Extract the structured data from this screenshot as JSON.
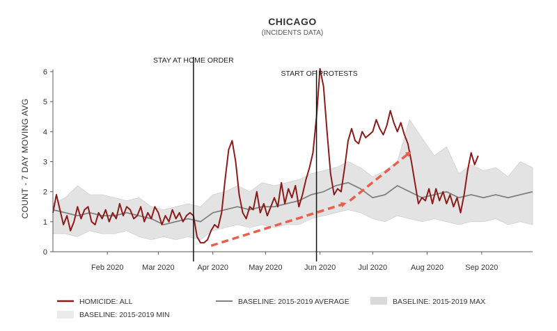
{
  "chart_data": {
    "type": "line",
    "title": "CHICAGO",
    "subtitle": "(INCIDENTS DATA)",
    "ylabel": "COUNT - 7 DAY MOVING AVG",
    "ylim": [
      0,
      6
    ],
    "y_ticks": [
      0,
      1,
      2,
      3,
      4,
      5,
      6
    ],
    "xlim": [
      "2020-01-01",
      "2020-09-30"
    ],
    "x_ticks": [
      {
        "date": "2020-02-01",
        "label": "Feb 2020"
      },
      {
        "date": "2020-03-01",
        "label": "Mar 2020"
      },
      {
        "date": "2020-04-01",
        "label": "Apr 2020"
      },
      {
        "date": "2020-05-01",
        "label": "May 2020"
      },
      {
        "date": "2020-06-01",
        "label": "Jun 2020"
      },
      {
        "date": "2020-07-01",
        "label": "Jul 2020"
      },
      {
        "date": "2020-08-01",
        "label": "Aug 2020"
      },
      {
        "date": "2020-09-01",
        "label": "Sep 2020"
      }
    ],
    "events": [
      {
        "date": "2020-03-21",
        "label": "STAY AT HOME ORDER"
      },
      {
        "date": "2020-05-30",
        "label": "START OF PROTESTS"
      }
    ],
    "grid": false,
    "legend_position": "bottom",
    "colors": {
      "homicide": "#8b1a1a",
      "average": "#808080",
      "band": "#d9d9d9",
      "arrow": "#e8604c",
      "event_line": "#111111"
    },
    "series": [
      {
        "name": "HOMICIDE: ALL",
        "points": [
          [
            "2020-01-01",
            1.3
          ],
          [
            "2020-01-03",
            1.9
          ],
          [
            "2020-01-05",
            1.4
          ],
          [
            "2020-01-07",
            0.9
          ],
          [
            "2020-01-09",
            1.2
          ],
          [
            "2020-01-11",
            0.7
          ],
          [
            "2020-01-13",
            1.0
          ],
          [
            "2020-01-15",
            1.5
          ],
          [
            "2020-01-17",
            1.1
          ],
          [
            "2020-01-19",
            1.4
          ],
          [
            "2020-01-21",
            1.5
          ],
          [
            "2020-01-23",
            1.0
          ],
          [
            "2020-01-25",
            0.9
          ],
          [
            "2020-01-27",
            1.3
          ],
          [
            "2020-01-29",
            1.1
          ],
          [
            "2020-01-31",
            1.4
          ],
          [
            "2020-02-02",
            1.0
          ],
          [
            "2020-02-04",
            1.3
          ],
          [
            "2020-02-06",
            1.1
          ],
          [
            "2020-02-08",
            1.6
          ],
          [
            "2020-02-10",
            1.2
          ],
          [
            "2020-02-12",
            1.5
          ],
          [
            "2020-02-14",
            1.4
          ],
          [
            "2020-02-16",
            1.1
          ],
          [
            "2020-02-18",
            1.2
          ],
          [
            "2020-02-20",
            1.5
          ],
          [
            "2020-02-22",
            1.0
          ],
          [
            "2020-02-24",
            1.3
          ],
          [
            "2020-02-26",
            1.1
          ],
          [
            "2020-02-28",
            1.5
          ],
          [
            "2020-03-01",
            1.3
          ],
          [
            "2020-03-03",
            0.9
          ],
          [
            "2020-03-05",
            1.2
          ],
          [
            "2020-03-07",
            1.0
          ],
          [
            "2020-03-09",
            1.4
          ],
          [
            "2020-03-11",
            1.1
          ],
          [
            "2020-03-13",
            1.3
          ],
          [
            "2020-03-15",
            1.0
          ],
          [
            "2020-03-17",
            1.2
          ],
          [
            "2020-03-19",
            1.3
          ],
          [
            "2020-03-21",
            1.2
          ],
          [
            "2020-03-23",
            0.5
          ],
          [
            "2020-03-25",
            0.3
          ],
          [
            "2020-03-27",
            0.3
          ],
          [
            "2020-03-29",
            0.4
          ],
          [
            "2020-03-31",
            0.7
          ],
          [
            "2020-04-02",
            0.9
          ],
          [
            "2020-04-04",
            0.8
          ],
          [
            "2020-04-06",
            1.3
          ],
          [
            "2020-04-08",
            2.4
          ],
          [
            "2020-04-10",
            3.4
          ],
          [
            "2020-04-12",
            3.7
          ],
          [
            "2020-04-14",
            3.0
          ],
          [
            "2020-04-16",
            1.9
          ],
          [
            "2020-04-18",
            1.3
          ],
          [
            "2020-04-20",
            1.1
          ],
          [
            "2020-04-22",
            1.5
          ],
          [
            "2020-04-24",
            1.4
          ],
          [
            "2020-04-26",
            2.0
          ],
          [
            "2020-04-28",
            1.3
          ],
          [
            "2020-04-30",
            1.6
          ],
          [
            "2020-05-02",
            1.2
          ],
          [
            "2020-05-04",
            1.5
          ],
          [
            "2020-05-06",
            1.8
          ],
          [
            "2020-05-08",
            1.5
          ],
          [
            "2020-05-10",
            2.3
          ],
          [
            "2020-05-12",
            1.6
          ],
          [
            "2020-05-14",
            2.1
          ],
          [
            "2020-05-16",
            1.8
          ],
          [
            "2020-05-18",
            2.2
          ],
          [
            "2020-05-20",
            1.5
          ],
          [
            "2020-05-22",
            1.9
          ],
          [
            "2020-05-24",
            2.4
          ],
          [
            "2020-05-26",
            2.8
          ],
          [
            "2020-05-28",
            3.3
          ],
          [
            "2020-05-30",
            4.5
          ],
          [
            "2020-06-01",
            6.1
          ],
          [
            "2020-06-03",
            5.5
          ],
          [
            "2020-06-05",
            4.0
          ],
          [
            "2020-06-07",
            2.6
          ],
          [
            "2020-06-09",
            1.9
          ],
          [
            "2020-06-11",
            2.1
          ],
          [
            "2020-06-13",
            2.0
          ],
          [
            "2020-06-15",
            2.8
          ],
          [
            "2020-06-17",
            3.7
          ],
          [
            "2020-06-19",
            4.1
          ],
          [
            "2020-06-21",
            3.7
          ],
          [
            "2020-06-23",
            3.6
          ],
          [
            "2020-06-25",
            4.0
          ],
          [
            "2020-06-27",
            3.8
          ],
          [
            "2020-06-29",
            3.9
          ],
          [
            "2020-07-01",
            4.0
          ],
          [
            "2020-07-03",
            4.4
          ],
          [
            "2020-07-05",
            4.1
          ],
          [
            "2020-07-07",
            3.9
          ],
          [
            "2020-07-09",
            4.2
          ],
          [
            "2020-07-11",
            4.7
          ],
          [
            "2020-07-13",
            4.3
          ],
          [
            "2020-07-15",
            4.0
          ],
          [
            "2020-07-17",
            4.3
          ],
          [
            "2020-07-19",
            3.9
          ],
          [
            "2020-07-21",
            3.6
          ],
          [
            "2020-07-23",
            3.0
          ],
          [
            "2020-07-25",
            2.3
          ],
          [
            "2020-07-27",
            1.6
          ],
          [
            "2020-07-29",
            1.8
          ],
          [
            "2020-07-31",
            1.7
          ],
          [
            "2020-08-02",
            2.1
          ],
          [
            "2020-08-04",
            1.6
          ],
          [
            "2020-08-06",
            2.1
          ],
          [
            "2020-08-08",
            1.7
          ],
          [
            "2020-08-10",
            2.0
          ],
          [
            "2020-08-12",
            1.6
          ],
          [
            "2020-08-14",
            1.9
          ],
          [
            "2020-08-16",
            1.5
          ],
          [
            "2020-08-18",
            1.8
          ],
          [
            "2020-08-20",
            1.3
          ],
          [
            "2020-08-22",
            1.9
          ],
          [
            "2020-08-24",
            2.7
          ],
          [
            "2020-08-26",
            3.3
          ],
          [
            "2020-08-28",
            2.9
          ],
          [
            "2020-08-30",
            3.2
          ]
        ]
      },
      {
        "name": "BASELINE: 2015-2019 AVERAGE",
        "points": [
          [
            "2020-01-01",
            1.4
          ],
          [
            "2020-01-08",
            1.3
          ],
          [
            "2020-01-15",
            1.2
          ],
          [
            "2020-01-22",
            1.3
          ],
          [
            "2020-01-29",
            1.2
          ],
          [
            "2020-02-05",
            1.2
          ],
          [
            "2020-02-12",
            1.3
          ],
          [
            "2020-02-19",
            1.2
          ],
          [
            "2020-02-26",
            1.1
          ],
          [
            "2020-03-04",
            0.9
          ],
          [
            "2020-03-11",
            1.0
          ],
          [
            "2020-03-18",
            1.1
          ],
          [
            "2020-03-25",
            1.0
          ],
          [
            "2020-04-01",
            1.3
          ],
          [
            "2020-04-08",
            1.4
          ],
          [
            "2020-04-15",
            1.5
          ],
          [
            "2020-04-22",
            1.4
          ],
          [
            "2020-04-29",
            1.5
          ],
          [
            "2020-05-06",
            1.5
          ],
          [
            "2020-05-13",
            1.6
          ],
          [
            "2020-05-20",
            1.7
          ],
          [
            "2020-05-27",
            1.9
          ],
          [
            "2020-06-03",
            2.0
          ],
          [
            "2020-06-10",
            2.2
          ],
          [
            "2020-06-17",
            2.3
          ],
          [
            "2020-06-24",
            2.1
          ],
          [
            "2020-07-01",
            1.8
          ],
          [
            "2020-07-08",
            1.9
          ],
          [
            "2020-07-15",
            2.2
          ],
          [
            "2020-07-22",
            2.0
          ],
          [
            "2020-07-29",
            1.8
          ],
          [
            "2020-08-05",
            1.9
          ],
          [
            "2020-08-12",
            2.0
          ],
          [
            "2020-08-19",
            1.8
          ],
          [
            "2020-08-26",
            1.9
          ],
          [
            "2020-09-02",
            1.8
          ],
          [
            "2020-09-09",
            1.9
          ],
          [
            "2020-09-16",
            1.8
          ],
          [
            "2020-09-23",
            1.9
          ],
          [
            "2020-09-30",
            2.0
          ]
        ]
      },
      {
        "name": "BASELINE: 2015-2019 MAX",
        "points": [
          [
            "2020-01-01",
            1.6
          ],
          [
            "2020-01-08",
            1.8
          ],
          [
            "2020-01-15",
            2.2
          ],
          [
            "2020-01-22",
            1.9
          ],
          [
            "2020-01-29",
            1.9
          ],
          [
            "2020-02-05",
            1.8
          ],
          [
            "2020-02-12",
            1.7
          ],
          [
            "2020-02-19",
            1.8
          ],
          [
            "2020-02-26",
            1.5
          ],
          [
            "2020-03-04",
            1.4
          ],
          [
            "2020-03-11",
            1.5
          ],
          [
            "2020-03-18",
            1.6
          ],
          [
            "2020-03-25",
            1.5
          ],
          [
            "2020-04-01",
            1.9
          ],
          [
            "2020-04-08",
            2.0
          ],
          [
            "2020-04-15",
            2.2
          ],
          [
            "2020-04-22",
            2.0
          ],
          [
            "2020-04-29",
            2.3
          ],
          [
            "2020-05-06",
            2.2
          ],
          [
            "2020-05-13",
            2.3
          ],
          [
            "2020-05-20",
            2.4
          ],
          [
            "2020-05-27",
            2.6
          ],
          [
            "2020-06-03",
            2.7
          ],
          [
            "2020-06-10",
            2.8
          ],
          [
            "2020-06-17",
            3.0
          ],
          [
            "2020-06-24",
            2.8
          ],
          [
            "2020-07-01",
            2.5
          ],
          [
            "2020-07-08",
            2.7
          ],
          [
            "2020-07-15",
            3.0
          ],
          [
            "2020-07-22",
            4.4
          ],
          [
            "2020-07-29",
            3.8
          ],
          [
            "2020-08-05",
            3.2
          ],
          [
            "2020-08-12",
            3.5
          ],
          [
            "2020-08-19",
            2.6
          ],
          [
            "2020-08-26",
            2.9
          ],
          [
            "2020-09-02",
            2.7
          ],
          [
            "2020-09-09",
            2.8
          ],
          [
            "2020-09-16",
            2.5
          ],
          [
            "2020-09-23",
            3.0
          ],
          [
            "2020-09-30",
            2.8
          ]
        ]
      },
      {
        "name": "BASELINE: 2015-2019 MIN",
        "points": [
          [
            "2020-01-01",
            0.6
          ],
          [
            "2020-01-08",
            0.6
          ],
          [
            "2020-01-15",
            0.5
          ],
          [
            "2020-01-22",
            0.7
          ],
          [
            "2020-01-29",
            0.6
          ],
          [
            "2020-02-05",
            0.6
          ],
          [
            "2020-02-12",
            0.7
          ],
          [
            "2020-02-19",
            0.5
          ],
          [
            "2020-02-26",
            0.4
          ],
          [
            "2020-03-04",
            0.5
          ],
          [
            "2020-03-11",
            0.4
          ],
          [
            "2020-03-18",
            0.5
          ],
          [
            "2020-03-25",
            0.4
          ],
          [
            "2020-04-01",
            0.7
          ],
          [
            "2020-04-08",
            0.8
          ],
          [
            "2020-04-15",
            0.9
          ],
          [
            "2020-04-22",
            0.8
          ],
          [
            "2020-04-29",
            0.9
          ],
          [
            "2020-05-06",
            0.8
          ],
          [
            "2020-05-13",
            0.9
          ],
          [
            "2020-05-20",
            0.9
          ],
          [
            "2020-05-27",
            1.1
          ],
          [
            "2020-06-03",
            1.2
          ],
          [
            "2020-06-10",
            1.3
          ],
          [
            "2020-06-17",
            1.4
          ],
          [
            "2020-06-24",
            1.3
          ],
          [
            "2020-07-01",
            1.1
          ],
          [
            "2020-07-08",
            1.0
          ],
          [
            "2020-07-15",
            1.2
          ],
          [
            "2020-07-22",
            1.1
          ],
          [
            "2020-07-29",
            1.0
          ],
          [
            "2020-08-05",
            1.1
          ],
          [
            "2020-08-12",
            1.0
          ],
          [
            "2020-08-19",
            0.9
          ],
          [
            "2020-08-26",
            1.0
          ],
          [
            "2020-09-02",
            1.0
          ],
          [
            "2020-09-09",
            1.1
          ],
          [
            "2020-09-16",
            0.9
          ],
          [
            "2020-09-23",
            1.0
          ],
          [
            "2020-09-30",
            0.9
          ]
        ]
      }
    ],
    "annotations": [
      {
        "type": "arrow",
        "from": [
          "2020-03-31",
          0.2
        ],
        "to": [
          "2020-06-15",
          1.6
        ]
      },
      {
        "type": "arrow",
        "from": [
          "2020-06-18",
          1.7
        ],
        "to": [
          "2020-07-22",
          3.3
        ]
      }
    ]
  }
}
